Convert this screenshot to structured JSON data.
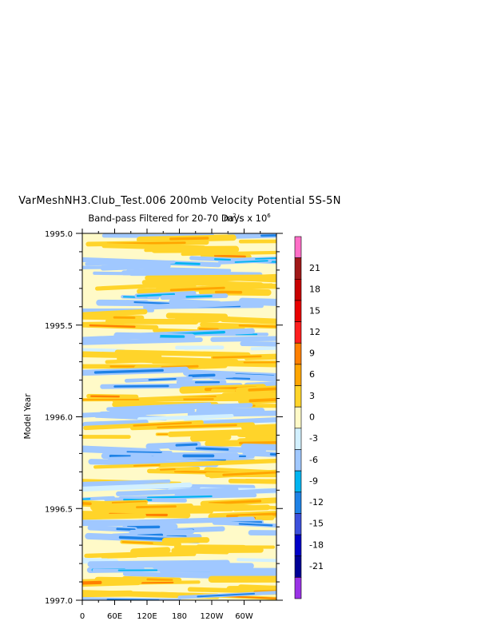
{
  "chart_data": {
    "type": "heatmap",
    "title": "VarMeshNH3.Club_Test.006 200mb Velocity Potential 5S-5N",
    "subtitle": "Band-pass Filtered for 20-70 Days",
    "units_text": "m",
    "units_exponent": "2",
    "units_tail": "/s x 10",
    "units_tail_exponent": "6",
    "ylabel": "Model Year",
    "xticks": [
      "0",
      "60E",
      "120E",
      "180",
      "120W",
      "60W"
    ],
    "yticks": [
      "1995.0",
      "1995.5",
      "1996.0",
      "1996.5",
      "1997.0"
    ],
    "ylim": [
      1995.0,
      1997.0
    ],
    "xlim": [
      0,
      360
    ],
    "colorbar": {
      "labels": [
        "21",
        "18",
        "15",
        "12",
        "9",
        "6",
        "3",
        "0",
        "-3",
        "-6",
        "-9",
        "-12",
        "-15",
        "-18",
        "-21"
      ],
      "colors": [
        "#ff6ec7",
        "#a01818",
        "#c80000",
        "#e80000",
        "#ff1e1e",
        "#ff7f00",
        "#ffa500",
        "#ffd42a",
        "#fffac8",
        "#d2f0ff",
        "#a0c8ff",
        "#00b4f0",
        "#1e82e6",
        "#3c50dc",
        "#0000c8",
        "#000096",
        "#9a32e6"
      ]
    }
  }
}
